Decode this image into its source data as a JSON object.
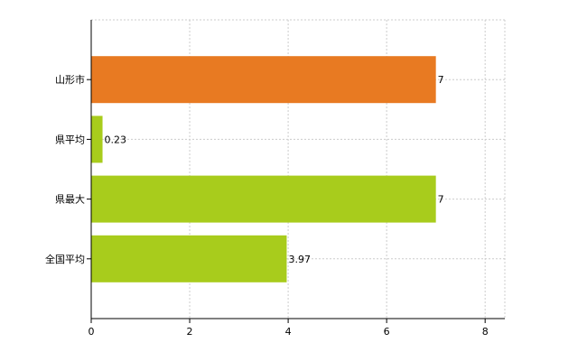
{
  "chart_data": {
    "type": "hbar",
    "categories": [
      "山形市",
      "県平均",
      "県最大",
      "全国平均"
    ],
    "values": [
      7,
      0.23,
      7,
      3.97
    ],
    "colors": [
      "#e87a22",
      "#a8cc1c",
      "#a8cc1c",
      "#a8cc1c"
    ],
    "xlim": [
      0,
      8.4
    ],
    "xticks": [
      0,
      2,
      4,
      6,
      8
    ],
    "grid": true
  }
}
